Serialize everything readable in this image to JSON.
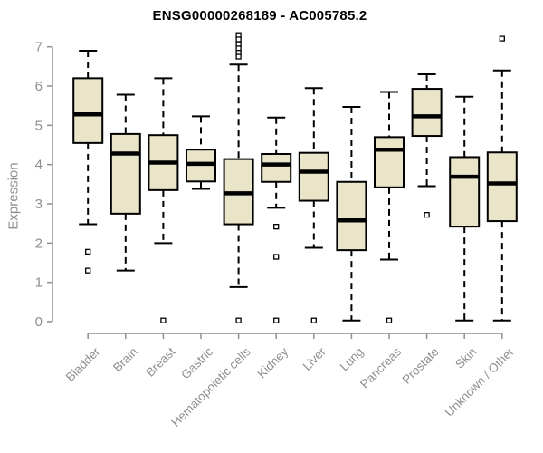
{
  "header": {
    "title": "ENSG00000268189 - AC005785.2"
  },
  "chart_data": {
    "type": "boxplot",
    "title": "ENSG00000268189 - AC005785.2",
    "xlabel": "",
    "ylabel": "Expression",
    "ylim": [
      0,
      7
    ],
    "yticks": [
      0,
      1,
      2,
      3,
      4,
      5,
      6,
      7
    ],
    "grid": false,
    "legend": "none",
    "categories": [
      "Bladder",
      "Brain",
      "Breast",
      "Gastric",
      "Hematopoietic cells",
      "Kidney",
      "Liver",
      "Lung",
      "Pancreas",
      "Prostate",
      "Skin",
      "Unknown / Other"
    ],
    "series": [
      {
        "name": "Bladder",
        "whisker_low": 2.48,
        "q1": 4.55,
        "median": 5.28,
        "q3": 6.2,
        "whisker_high": 6.9,
        "outliers": [
          1.78,
          1.3
        ]
      },
      {
        "name": "Brain",
        "whisker_low": 1.3,
        "q1": 2.75,
        "median": 4.28,
        "q3": 4.78,
        "whisker_high": 5.78,
        "outliers": []
      },
      {
        "name": "Breast",
        "whisker_low": 2.0,
        "q1": 3.35,
        "median": 4.05,
        "q3": 4.75,
        "whisker_high": 6.2,
        "outliers": [
          0.03
        ]
      },
      {
        "name": "Gastric",
        "whisker_low": 3.38,
        "q1": 3.57,
        "median": 4.02,
        "q3": 4.38,
        "whisker_high": 5.23,
        "outliers": []
      },
      {
        "name": "Hematopoietic cells",
        "whisker_low": 0.88,
        "q1": 2.48,
        "median": 3.27,
        "q3": 4.14,
        "whisker_high": 6.55,
        "outliers": [
          7.3,
          7.19,
          7.07,
          6.96,
          6.85,
          6.75,
          0.03
        ]
      },
      {
        "name": "Kidney",
        "whisker_low": 2.9,
        "q1": 3.56,
        "median": 4.0,
        "q3": 4.27,
        "whisker_high": 5.2,
        "outliers": [
          2.42,
          1.65,
          0.03
        ]
      },
      {
        "name": "Liver",
        "whisker_low": 1.88,
        "q1": 3.08,
        "median": 3.82,
        "q3": 4.3,
        "whisker_high": 5.95,
        "outliers": [
          0.03
        ]
      },
      {
        "name": "Lung",
        "whisker_low": 0.03,
        "q1": 1.82,
        "median": 2.58,
        "q3": 3.56,
        "whisker_high": 5.47,
        "outliers": []
      },
      {
        "name": "Pancreas",
        "whisker_low": 1.58,
        "q1": 3.42,
        "median": 4.38,
        "q3": 4.7,
        "whisker_high": 5.85,
        "outliers": [
          0.03
        ]
      },
      {
        "name": "Prostate",
        "whisker_low": 3.45,
        "q1": 4.73,
        "median": 5.23,
        "q3": 5.93,
        "whisker_high": 6.3,
        "outliers": [
          2.72
        ]
      },
      {
        "name": "Skin",
        "whisker_low": 0.03,
        "q1": 2.42,
        "median": 3.69,
        "q3": 4.19,
        "whisker_high": 5.73,
        "outliers": []
      },
      {
        "name": "Unknown / Other",
        "whisker_low": 0.03,
        "q1": 2.56,
        "median": 3.52,
        "q3": 4.31,
        "whisker_high": 6.4,
        "outliers": [
          7.21
        ]
      }
    ],
    "colors": {
      "box_fill": "#EAE4C9",
      "box_border": "#000000",
      "median": "#000000",
      "whisker": "#000000",
      "axis": "#8f8f8f",
      "tick_label": "#8f8f8f",
      "title": "#000000",
      "background": "#ffffff"
    }
  }
}
